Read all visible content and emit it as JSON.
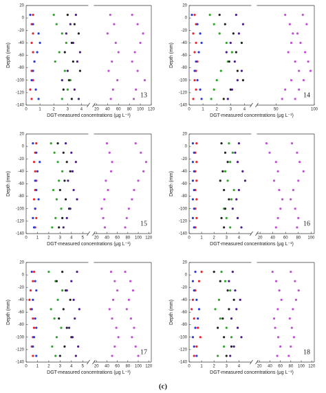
{
  "caption": "(c)",
  "chart_data": [
    {
      "type": "scatter",
      "label": "13",
      "xlabel": "DGT-measured concentrations (μg L⁻¹)",
      "ylabel": "Depth (mm)",
      "ylim": [
        -140,
        20
      ],
      "yticks": [
        20,
        0,
        -20,
        -40,
        -60,
        -80,
        -100,
        -120,
        -140
      ],
      "segments": [
        {
          "xlim": [
            0,
            4.5
          ],
          "xticks": [
            0,
            1,
            2,
            3,
            4
          ]
        },
        {
          "xlim": [
            15,
            120
          ],
          "xticks": [
            20,
            40,
            60,
            80,
            100,
            120
          ]
        }
      ],
      "depths": [
        5,
        -10,
        -25,
        -40,
        -55,
        -70,
        -85,
        -100,
        -115,
        -130
      ],
      "series": [
        {
          "color": "#e8262a",
          "segment": 0,
          "values": [
            0.5,
            0.4,
            0.5,
            0.4,
            0.5,
            0.6,
            0.4,
            0.5,
            0.3,
            0.4
          ]
        },
        {
          "color": "#2a3ad8",
          "segment": 0,
          "values": [
            0.3,
            0.5,
            0.9,
            1.0,
            0.8,
            0.6,
            0.5,
            0.4,
            0.7,
            0.9
          ]
        },
        {
          "color": "#2fa52a",
          "segment": 0,
          "values": [
            2.0,
            2.2,
            2.6,
            2.9,
            2.4,
            2.1,
            2.8,
            3.2,
            3.0,
            2.6
          ]
        },
        {
          "color": "#222222",
          "segment": 0,
          "values": [
            3.0,
            3.5,
            3.8,
            3.3,
            2.8,
            3.4,
            3.9,
            3.1,
            2.7,
            3.3
          ]
        },
        {
          "color": "#4b1c8c",
          "segment": 0,
          "values": [
            3.6,
            3.2,
            2.9,
            3.4,
            3.9,
            3.7,
            3.0,
            2.6,
            3.5,
            3.8
          ]
        },
        {
          "color": "#c24fd6",
          "segment": 1,
          "values": [
            45,
            52,
            40,
            55,
            60,
            48,
            42,
            58,
            50,
            46
          ]
        },
        {
          "color": "#c24fd6",
          "segment": 1,
          "values": [
            85,
            95,
            105,
            100,
            90,
            85,
            95,
            108,
            92,
            88
          ]
        }
      ]
    },
    {
      "type": "scatter",
      "label": "14",
      "xlabel": "DGT-measured concentrations (μg L⁻¹)",
      "ylabel": "Depth (mm)",
      "ylim": [
        -140,
        20
      ],
      "yticks": [
        20,
        0,
        -20,
        -40,
        -60,
        -80,
        -100,
        -120,
        -140
      ],
      "segments": [
        {
          "xlim": [
            0,
            4.5
          ],
          "xticks": [
            0,
            1,
            2,
            3,
            4
          ]
        },
        {
          "xlim": [
            25,
            100
          ],
          "xticks": [
            50,
            100
          ]
        }
      ],
      "depths": [
        5,
        -10,
        -25,
        -40,
        -55,
        -70,
        -85,
        -100,
        -115,
        -130
      ],
      "series": [
        {
          "color": "#e8262a",
          "segment": 0,
          "values": [
            0.4,
            0.5,
            0.3,
            0.5,
            0.4,
            0.6,
            0.5,
            0.4,
            0.5,
            0.3
          ]
        },
        {
          "color": "#2a3ad8",
          "segment": 0,
          "values": [
            0.2,
            0.6,
            0.8,
            0.9,
            0.7,
            0.5,
            0.4,
            0.6,
            0.8,
            0.9
          ]
        },
        {
          "color": "#2fa52a",
          "segment": 0,
          "values": [
            1.5,
            1.8,
            2.2,
            2.7,
            3.1,
            2.8,
            2.3,
            2.0,
            1.8,
            1.6
          ]
        },
        {
          "color": "#222222",
          "segment": 0,
          "values": [
            2.2,
            2.6,
            3.2,
            3.8,
            3.4,
            2.9,
            3.5,
            3.9,
            3.0,
            2.5
          ]
        },
        {
          "color": "#4b1c8c",
          "segment": 0,
          "values": [
            3.4,
            3.9,
            3.6,
            3.0,
            2.7,
            3.3,
            3.8,
            3.5,
            3.1,
            2.8
          ]
        },
        {
          "color": "#c24fd6",
          "segment": 1,
          "values": [
            62,
            68,
            72,
            70,
            66,
            75,
            80,
            70,
            62,
            58
          ]
        },
        {
          "color": "#c24fd6",
          "segment": 1,
          "values": [
            85,
            90,
            78,
            82,
            88,
            92,
            95,
            86,
            80,
            75
          ]
        }
      ]
    },
    {
      "type": "scatter",
      "label": "15",
      "xlabel": "DGT-measured concentrations (μg L⁻¹)",
      "ylabel": "Depth (mm)",
      "ylim": [
        -140,
        20
      ],
      "yticks": [
        20,
        0,
        -20,
        -40,
        -60,
        -80,
        -100,
        -120,
        -140
      ],
      "segments": [
        {
          "xlim": [
            0,
            5.5
          ],
          "xticks": [
            0,
            1,
            2,
            3,
            4,
            5
          ]
        },
        {
          "xlim": [
            15,
            125
          ],
          "xticks": [
            20,
            40,
            60,
            80,
            100,
            120
          ]
        }
      ],
      "depths": [
        5,
        -10,
        -25,
        -40,
        -55,
        -70,
        -85,
        -100,
        -115,
        -130
      ],
      "series": [
        {
          "color": "#e8262a",
          "segment": 0,
          "values": [
            0.9,
            0.8,
            0.7,
            0.8,
            0.9,
            0.8,
            0.7,
            0.8,
            0.9,
            0.8
          ]
        },
        {
          "color": "#2a3ad8",
          "segment": 0,
          "values": [
            0.6,
            0.9,
            1.2,
            1.0,
            0.8,
            0.9,
            1.1,
            0.8,
            0.6,
            0.7
          ]
        },
        {
          "color": "#2fa52a",
          "segment": 0,
          "values": [
            2.2,
            2.5,
            2.8,
            3.2,
            2.9,
            2.4,
            2.7,
            3.1,
            2.6,
            2.3
          ]
        },
        {
          "color": "#222222",
          "segment": 0,
          "values": [
            2.8,
            3.3,
            3.6,
            3.9,
            3.4,
            3.0,
            3.5,
            3.8,
            3.2,
            2.9
          ]
        },
        {
          "color": "#4b1c8c",
          "segment": 0,
          "values": [
            3.5,
            4.0,
            4.4,
            4.1,
            3.7,
            4.2,
            4.5,
            3.9,
            3.6,
            3.3
          ]
        },
        {
          "color": "#c24fd6",
          "segment": 1,
          "values": [
            40,
            45,
            50,
            48,
            38,
            42,
            35,
            30,
            33,
            36
          ]
        },
        {
          "color": "#c24fd6",
          "segment": 1,
          "values": [
            95,
            105,
            115,
            110,
            100,
            92,
            88,
            82,
            78,
            75
          ]
        }
      ]
    },
    {
      "type": "scatter",
      "label": "16",
      "xlabel": "DGT-measured concentrations (μg L⁻¹)",
      "ylabel": "Depth (mm)",
      "ylim": [
        -140,
        20
      ],
      "yticks": [
        20,
        0,
        -20,
        -40,
        -60,
        -80,
        -100,
        -120,
        -140
      ],
      "segments": [
        {
          "xlim": [
            0,
            5
          ],
          "xticks": [
            0,
            1,
            2,
            3,
            4
          ]
        },
        {
          "xlim": [
            15,
            105
          ],
          "xticks": [
            20,
            40,
            60,
            80,
            100
          ]
        }
      ],
      "depths": [
        5,
        -10,
        -25,
        -40,
        -55,
        -70,
        -85,
        -100,
        -115,
        -130
      ],
      "series": [
        {
          "color": "#e8262a",
          "segment": 0,
          "values": [
            0.6,
            0.5,
            0.6,
            0.5,
            0.6,
            0.5,
            0.6,
            0.5,
            0.6,
            0.5
          ]
        },
        {
          "color": "#2a3ad8",
          "segment": 0,
          "values": [
            0.3,
            0.4,
            0.3,
            0.4,
            0.3,
            0.4,
            0.3,
            0.4,
            0.3,
            0.4
          ]
        },
        {
          "color": "#2fa52a",
          "segment": 0,
          "values": [
            3.2,
            3.5,
            3.3,
            2.9,
            3.1,
            3.6,
            3.4,
            2.8,
            3.0,
            3.3
          ]
        },
        {
          "color": "#222222",
          "segment": 0,
          "values": [
            2.6,
            2.9,
            3.1,
            2.7,
            2.5,
            2.8,
            3.2,
            2.9,
            2.6,
            2.8
          ]
        },
        {
          "color": "#4b1c8c",
          "segment": 0,
          "values": [
            4.0,
            3.7,
            3.9,
            4.3,
            4.5,
            4.0,
            3.8,
            3.5,
            3.9,
            4.2
          ]
        },
        {
          "color": "#c24fd6",
          "segment": 1,
          "values": [
            30,
            35,
            45,
            48,
            42,
            50,
            55,
            52,
            48,
            45
          ]
        },
        {
          "color": "#c24fd6",
          "segment": 1,
          "values": [
            70,
            78,
            82,
            88,
            80,
            72,
            68,
            75,
            80,
            78
          ]
        }
      ]
    },
    {
      "type": "scatter",
      "label": "17",
      "xlabel": "DGT-measured concentrations (μg L⁻¹)",
      "ylabel": "Depth (mm)",
      "ylim": [
        -140,
        20
      ],
      "yticks": [
        20,
        0,
        -20,
        -40,
        -60,
        -80,
        -100,
        -120,
        -140
      ],
      "segments": [
        {
          "xlim": [
            0,
            5.5
          ],
          "xticks": [
            0,
            1,
            2,
            3,
            4,
            5
          ]
        },
        {
          "xlim": [
            15,
            125
          ],
          "xticks": [
            20,
            40,
            60,
            80,
            100,
            120
          ]
        }
      ],
      "depths": [
        5,
        -10,
        -25,
        -40,
        -55,
        -70,
        -85,
        -100,
        -115,
        -130
      ],
      "series": [
        {
          "color": "#e8262a",
          "segment": 0,
          "values": [
            0.7,
            0.6,
            0.4,
            0.3,
            0.4,
            0.6,
            0.7,
            0.6,
            0.5,
            0.6
          ]
        },
        {
          "color": "#2a3ad8",
          "segment": 0,
          "values": [
            0.5,
            0.8,
            0.9,
            0.6,
            0.5,
            0.8,
            0.9,
            0.7,
            0.6,
            0.9
          ]
        },
        {
          "color": "#2fa52a",
          "segment": 0,
          "values": [
            2.0,
            2.6,
            3.2,
            2.8,
            2.2,
            2.5,
            3.1,
            2.7,
            2.3,
            2.6
          ]
        },
        {
          "color": "#222222",
          "segment": 0,
          "values": [
            3.2,
            2.7,
            3.5,
            3.9,
            3.3,
            2.9,
            3.6,
            4.0,
            3.4,
            3.0
          ]
        },
        {
          "color": "#4b1c8c",
          "segment": 0,
          "values": [
            4.5,
            4.0,
            3.6,
            4.2,
            4.7,
            4.3,
            3.8,
            4.1,
            4.6,
            4.4
          ]
        },
        {
          "color": "#c24fd6",
          "segment": 1,
          "values": [
            48,
            55,
            60,
            52,
            45,
            50,
            58,
            62,
            55,
            50
          ]
        },
        {
          "color": "#c24fd6",
          "segment": 1,
          "values": [
            75,
            85,
            90,
            82,
            78,
            86,
            92,
            88,
            95,
            100
          ]
        }
      ]
    },
    {
      "type": "scatter",
      "label": "18",
      "xlabel": "DGT-measured concentrations (μg L⁻¹)",
      "ylabel": "Depth (mm)",
      "ylim": [
        -140,
        20
      ],
      "yticks": [
        20,
        0,
        -20,
        -40,
        -60,
        -80,
        -100,
        -120,
        -140
      ],
      "segments": [
        {
          "xlim": [
            0,
            5
          ],
          "xticks": [
            0,
            1,
            2,
            3,
            4
          ]
        },
        {
          "xlim": [
            15,
            125
          ],
          "xticks": [
            20,
            40,
            60,
            80,
            100,
            120
          ]
        }
      ],
      "depths": [
        5,
        -10,
        -25,
        -40,
        -55,
        -70,
        -85,
        -100,
        -115,
        -130
      ],
      "series": [
        {
          "color": "#e8262a",
          "segment": 0,
          "values": [
            1.0,
            0.8,
            0.5,
            0.3,
            0.2,
            0.4,
            0.7,
            0.9,
            0.6,
            0.4
          ]
        },
        {
          "color": "#2a3ad8",
          "segment": 0,
          "values": [
            0.5,
            0.3,
            0.4,
            0.6,
            0.8,
            0.7,
            0.5,
            0.3,
            0.4,
            0.6
          ]
        },
        {
          "color": "#2fa52a",
          "segment": 0,
          "values": [
            2.6,
            2.9,
            3.3,
            2.4,
            2.1,
            2.5,
            3.0,
            3.4,
            2.8,
            2.3
          ]
        },
        {
          "color": "#222222",
          "segment": 0,
          "values": [
            2.0,
            2.5,
            3.1,
            3.6,
            3.2,
            2.7,
            2.3,
            2.8,
            3.4,
            3.0
          ]
        },
        {
          "color": "#4b1c8c",
          "segment": 0,
          "values": [
            3.5,
            3.2,
            3.7,
            4.1,
            3.8,
            3.4,
            3.9,
            4.2,
            3.6,
            3.3
          ]
        },
        {
          "color": "#c24fd6",
          "segment": 1,
          "values": [
            45,
            52,
            58,
            62,
            55,
            48,
            50,
            56,
            60,
            54
          ]
        },
        {
          "color": "#c24fd6",
          "segment": 1,
          "values": [
            80,
            88,
            95,
            90,
            84,
            78,
            82,
            86,
            80,
            76
          ]
        }
      ]
    }
  ]
}
